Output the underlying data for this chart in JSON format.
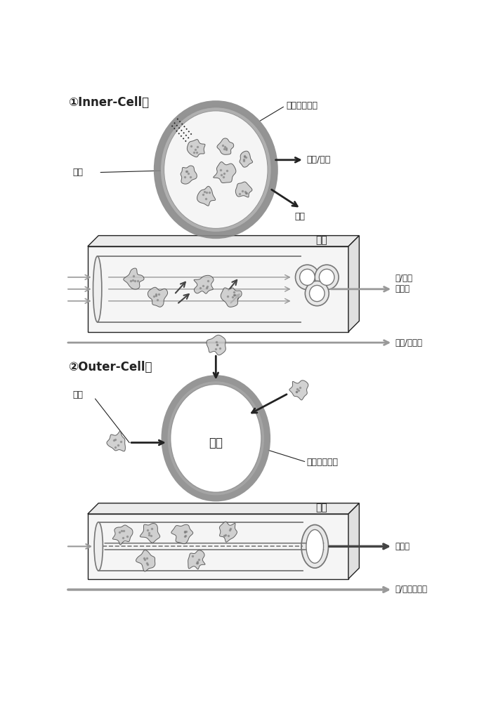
{
  "title1": "①Inner-Cell型",
  "title2": "②Outer-Cell型",
  "label_semi_membrane": "半透膜中空丝",
  "label_sphere": "球体",
  "label_product_waste": "产物/废物",
  "label_supply": "补给",
  "label_channel": "流道",
  "label_oxy_supply": "氧/营养\n补给线",
  "label_supply_recycle": "补给/回收线",
  "label_product2": "产物",
  "label_semi_membrane2": "半透膜中空丝",
  "label_recycle": "回收线",
  "label_oxy_supply2": "氧/营养补给线",
  "bg_color": "#ffffff",
  "line_color": "#222222",
  "gray": "#777777",
  "dark_gray": "#444444",
  "med_gray": "#999999",
  "blob_color": "#c8c8c8",
  "membrane_color": "#888888"
}
